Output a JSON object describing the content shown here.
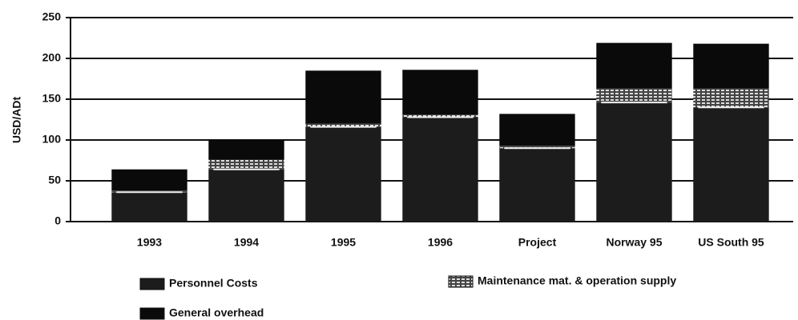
{
  "chart_data": {
    "type": "stacked_bar",
    "ylabel": "USD/ADt",
    "categories": [
      "1993",
      "1994",
      "1995",
      "1996",
      "Project",
      "Norway 95",
      "US South 95"
    ],
    "series": [
      {
        "name": "Personnel Costs",
        "color": "#1c1c1c",
        "values": [
          36,
          64,
          116,
          128,
          90,
          146,
          140
        ]
      },
      {
        "name": "Maintenance mat. & operation supply",
        "color": "#b8b8b8",
        "values": [
          2,
          12,
          4,
          3,
          3,
          17,
          23
        ]
      },
      {
        "name": "General overhead",
        "color": "#0a0a0a",
        "values": [
          26,
          24,
          65,
          55,
          39,
          56,
          55
        ]
      }
    ],
    "ylim": [
      0,
      250
    ],
    "yticks": [
      0,
      50,
      100,
      150,
      200,
      250
    ],
    "grid": true
  }
}
